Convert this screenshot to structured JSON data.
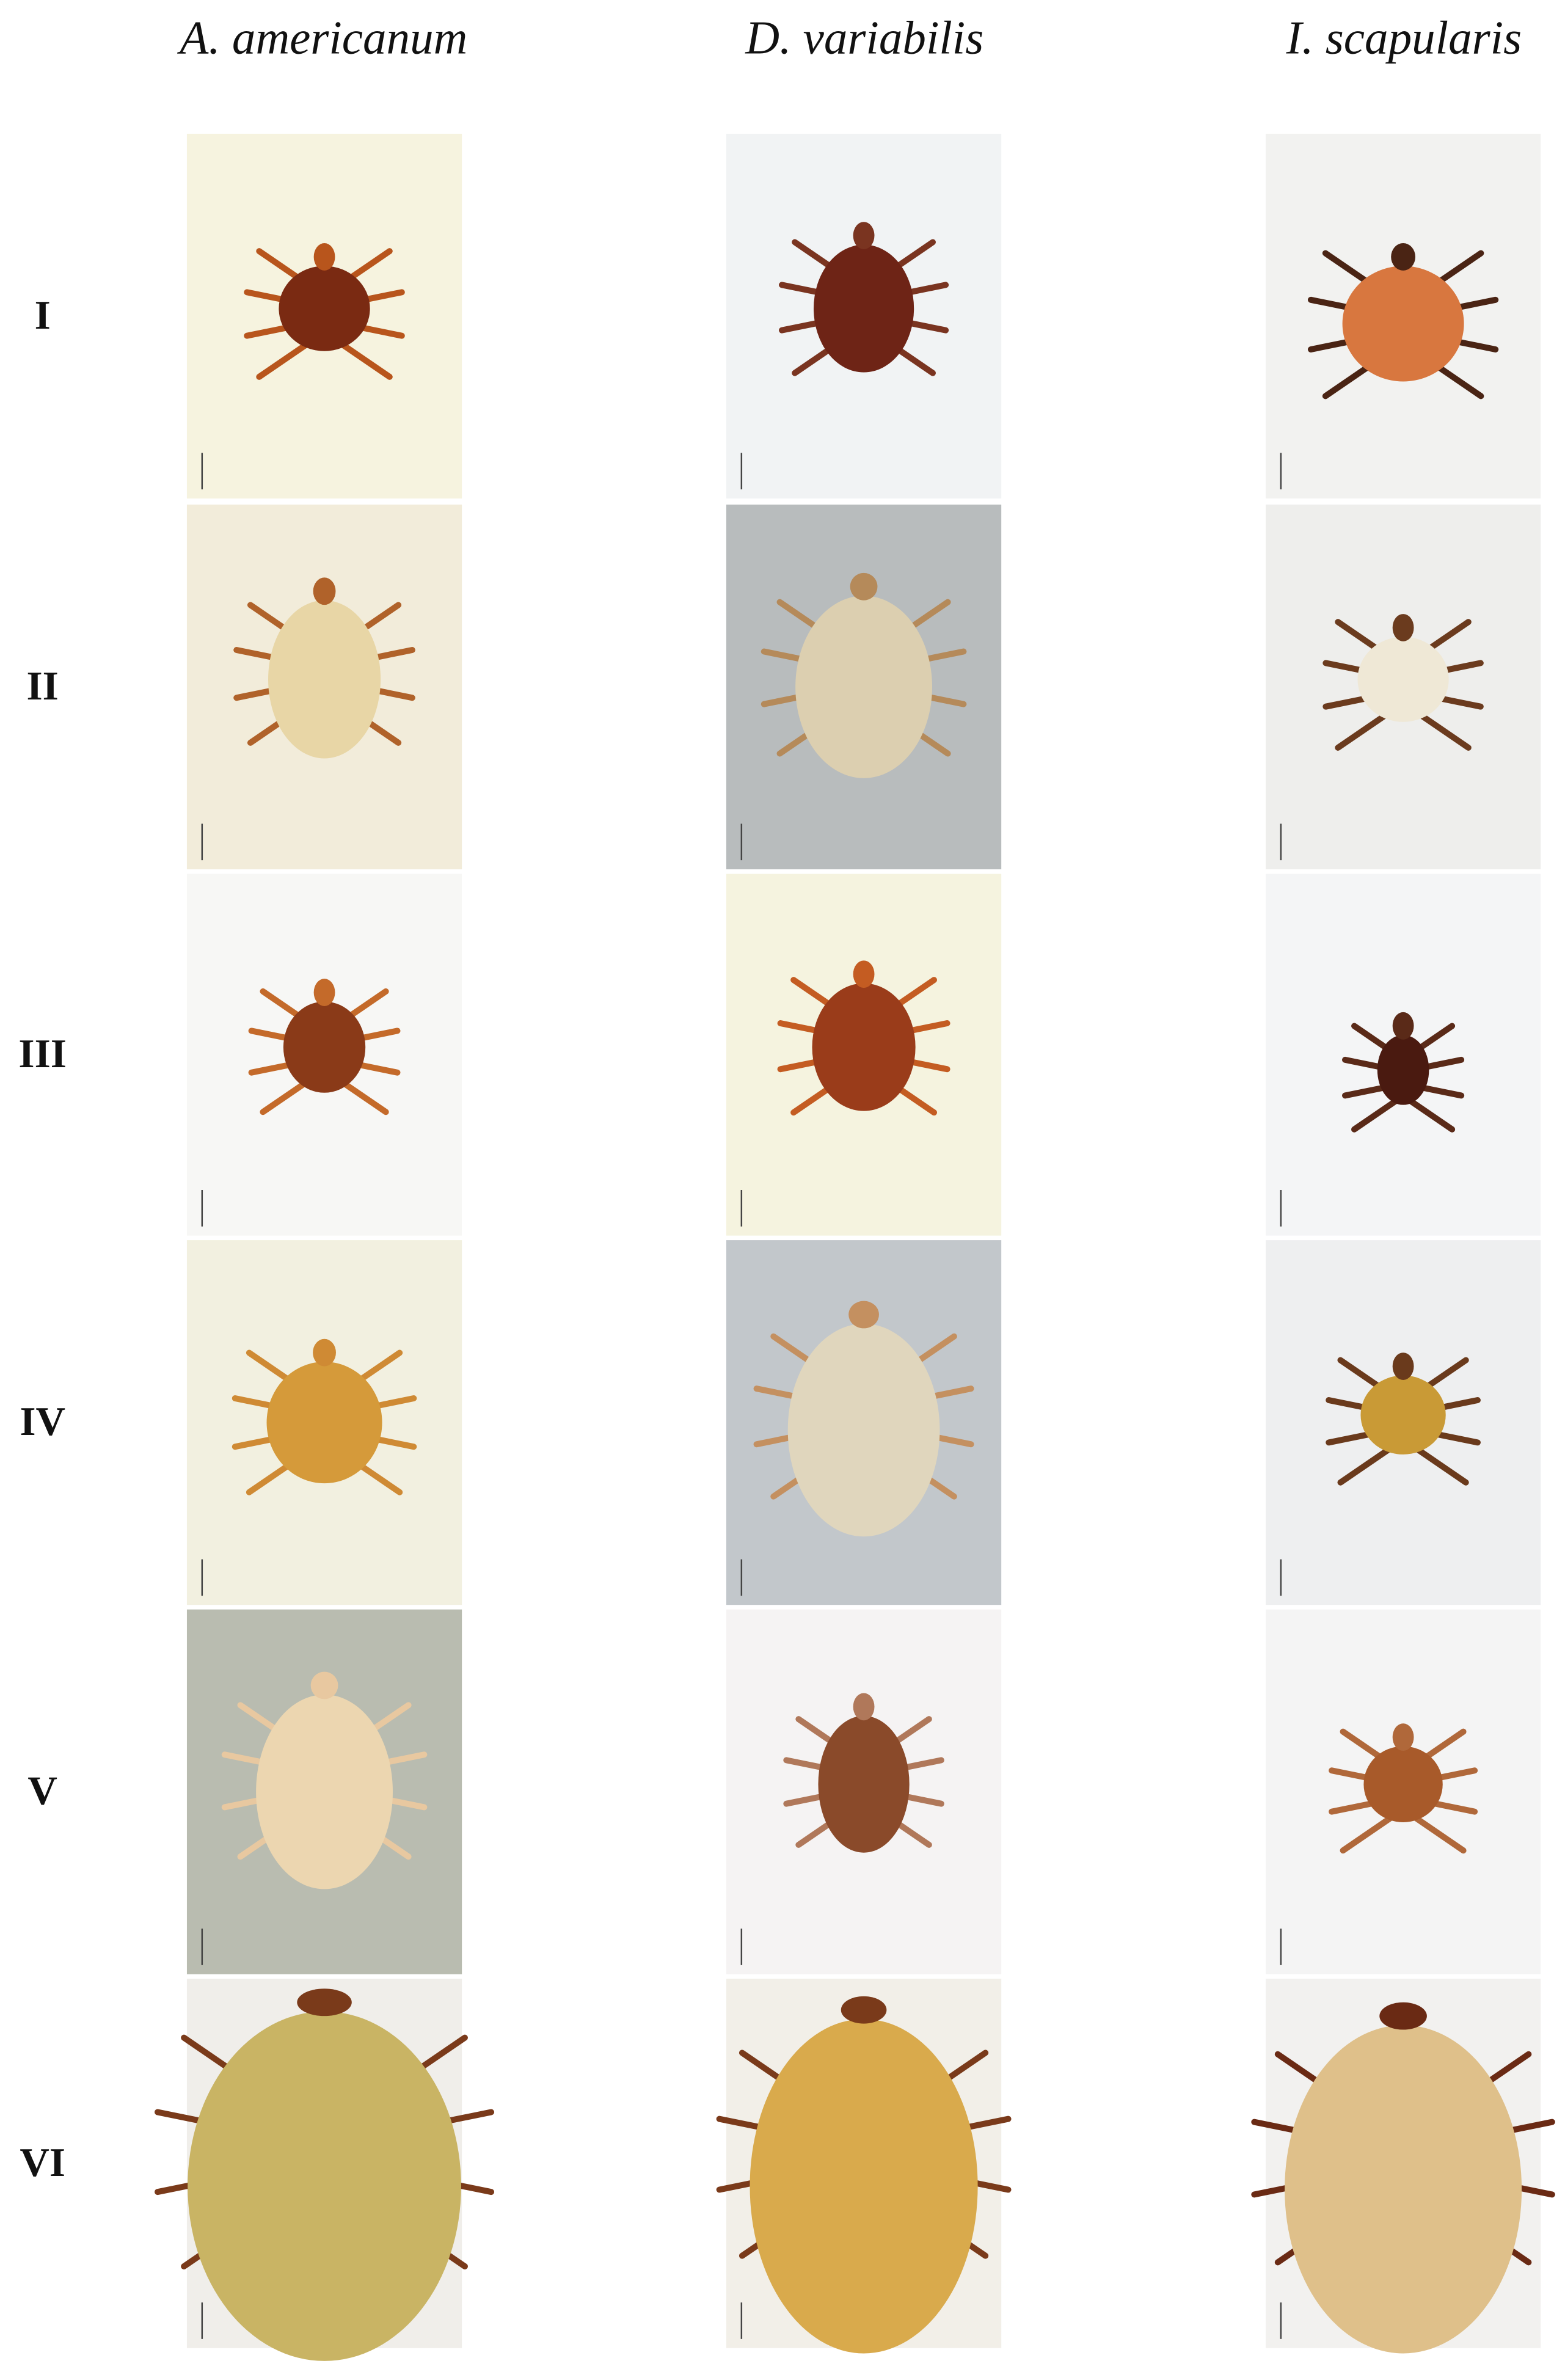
{
  "columns": [
    "A. americanum",
    "D. variabilis",
    "I. scapularis"
  ],
  "rows": [
    "I",
    "II",
    "III",
    "IV",
    "V",
    "VI"
  ]
}
